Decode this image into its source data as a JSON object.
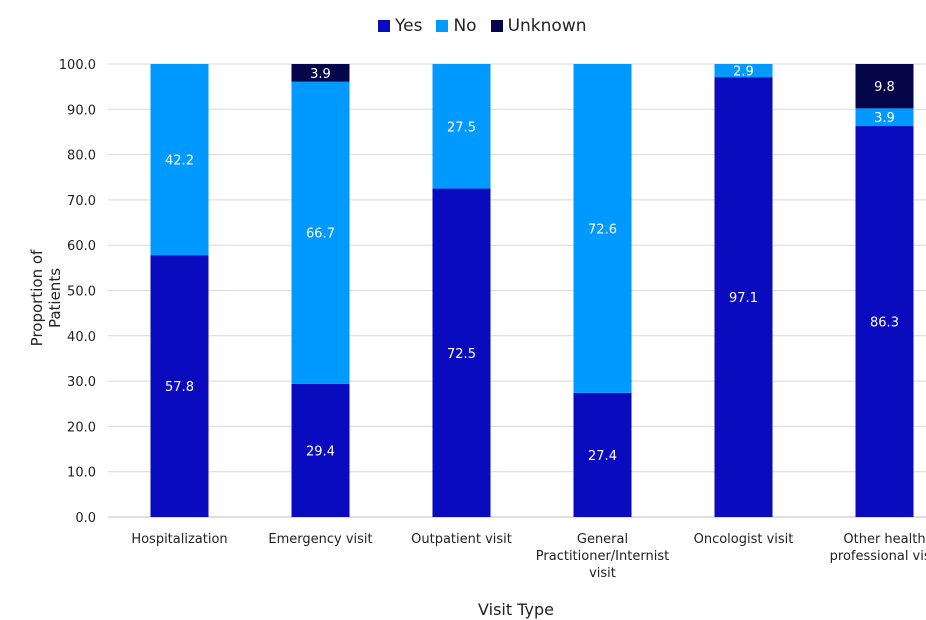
{
  "chart_data": {
    "type": "bar",
    "stacked": true,
    "categories": [
      "Hospitalization",
      "Emergency visit",
      "Outpatient visit",
      "General Practitioner/Internist visit",
      "Oncologist visit",
      "Other health professional visit"
    ],
    "category_lines": [
      [
        "Hospitalization"
      ],
      [
        "Emergency visit"
      ],
      [
        "Outpatient visit"
      ],
      [
        "General",
        "Practitioner/Internist",
        "visit"
      ],
      [
        "Oncologist visit"
      ],
      [
        "Other health",
        "professional visit"
      ]
    ],
    "series": [
      {
        "name": "Yes",
        "values": [
          57.8,
          29.4,
          72.5,
          27.4,
          97.1,
          86.3
        ],
        "color": "#0A0ABF",
        "label_color": "#ffffff"
      },
      {
        "name": "No",
        "values": [
          42.2,
          66.7,
          27.5,
          72.6,
          2.9,
          3.9
        ],
        "color": "#0099FF",
        "label_color": "#ffffff"
      },
      {
        "name": "Unknown",
        "values": [
          0,
          3.9,
          0,
          0,
          0,
          9.8
        ],
        "color": "#05054A",
        "label_color": "#ffffff"
      }
    ],
    "ylabel": "Proportion of Patients",
    "xlabel": "Visit Type",
    "ylim": [
      0,
      100
    ],
    "yticks": [
      "0.0",
      "10.0",
      "20.0",
      "30.0",
      "40.0",
      "50.0",
      "60.0",
      "70.0",
      "80.0",
      "90.0",
      "100.0"
    ],
    "grid": true,
    "legend_position": "top-center"
  }
}
